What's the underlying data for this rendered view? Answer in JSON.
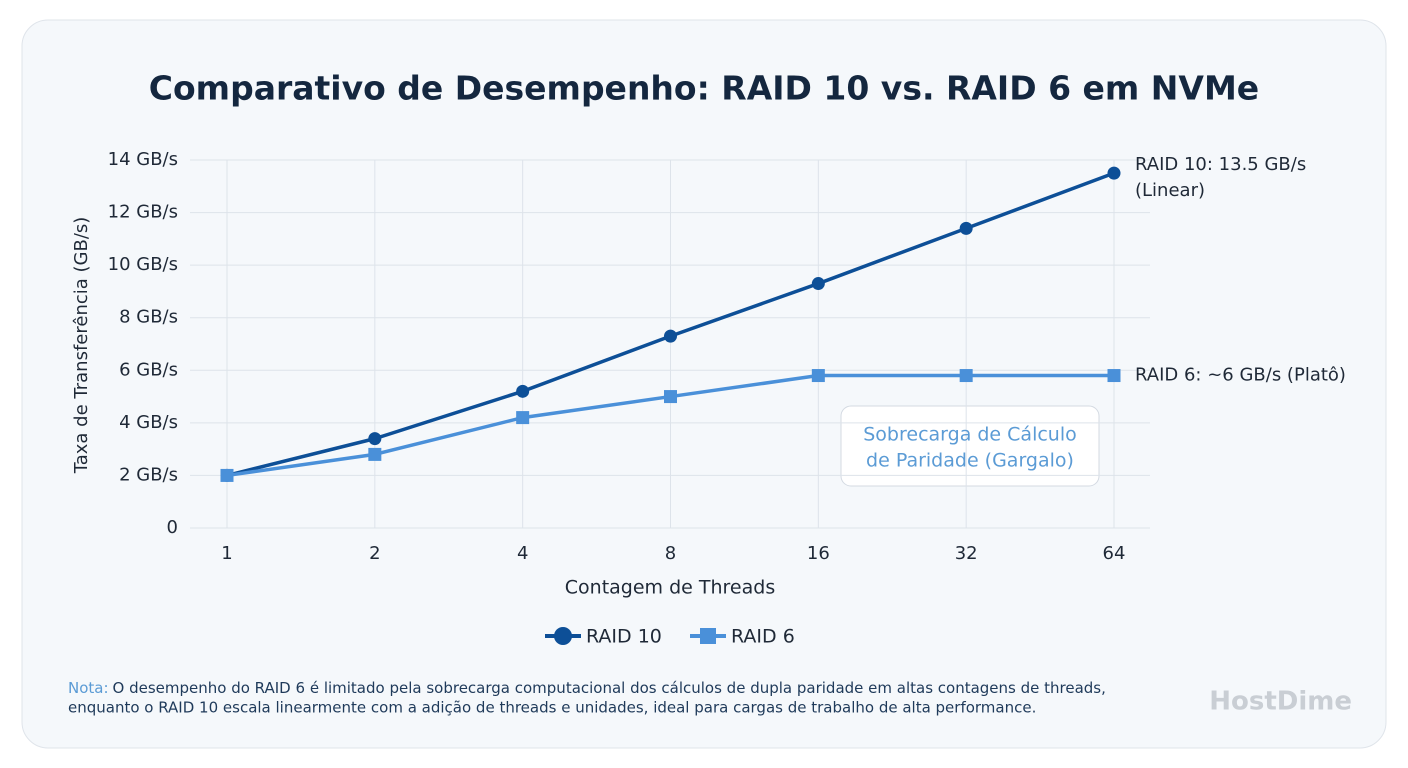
{
  "chart_data": {
    "type": "line",
    "title": "Comparativo de Desempenho: RAID 10 vs. RAID 6 em NVMe",
    "x_label": "Contagem de Threads",
    "y_label": "Taxa de Transferência (GB/s)",
    "categories": [
      "1",
      "2",
      "4",
      "8",
      "16",
      "32",
      "64"
    ],
    "series": [
      {
        "name": "RAID 10",
        "color": "#0d4f97",
        "marker": "circle",
        "values": [
          2,
          3.4,
          5.2,
          7.3,
          9.3,
          11.4,
          13.5
        ]
      },
      {
        "name": "RAID 6",
        "color": "#4a90d9",
        "marker": "square",
        "values": [
          2,
          2.8,
          4.2,
          5.0,
          5.8,
          5.8,
          5.8
        ]
      }
    ],
    "ylim": [
      0,
      14
    ],
    "yticks": [
      0,
      {
        "value": 2,
        "label": "2 GB/s"
      },
      {
        "value": 4,
        "label": "4 GB/s"
      },
      {
        "value": 6,
        "label": "6 GB/s"
      },
      {
        "value": 8,
        "label": "8 GB/s"
      },
      {
        "value": 10,
        "label": "10 GB/s"
      },
      {
        "value": 12,
        "label": "12 GB/s"
      },
      {
        "value": 14,
        "label": "14 GB/s"
      }
    ],
    "grid": true,
    "legend": "bottom",
    "end_labels": [
      [
        "RAID 10: 13.5 GB/s",
        "(Linear)"
      ],
      [
        "RAID 6: ~6 GB/s (Platô)"
      ]
    ],
    "callout": [
      "Sobrecarga de Cálculo",
      "de Paridade (Gargalo)"
    ],
    "note": {
      "label": "Nota:",
      "lines": [
        "O desempenho do RAID 6 é limitado pela sobrecarga computacional dos cálculos de dupla paridade em altas contagens de threads,",
        "enquanto o RAID 10 escala linearmente com a adição de threads e unidades, ideal para cargas de trabalho de alta performance."
      ]
    },
    "brand": "HostDime"
  }
}
